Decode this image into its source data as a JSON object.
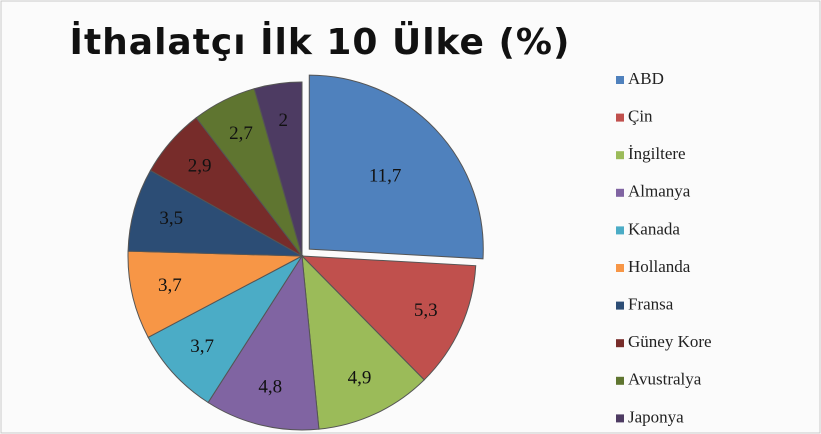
{
  "chart_data": {
    "type": "pie",
    "title": "İthalatçı İlk 10 Ülke (%)",
    "categories": [
      "ABD",
      "Çin",
      "İngiltere",
      "Almanya",
      "Kanada",
      "Hollanda",
      "Fransa",
      "Güney Kore",
      "Avustralya",
      "Japonya"
    ],
    "values": [
      11.7,
      5.3,
      4.9,
      4.8,
      3.7,
      3.7,
      3.5,
      2.9,
      2.7,
      2
    ],
    "value_labels": [
      "11,7",
      "5,3",
      "4,9",
      "4,8",
      "3,7",
      "3,7",
      "3,5",
      "2,9",
      "2,7",
      "2"
    ],
    "colors": [
      "#4f81bd",
      "#c0504d",
      "#9bbb59",
      "#8064a2",
      "#4bacc6",
      "#f79646",
      "#2c4d75",
      "#772c2a",
      "#5f7530",
      "#4d3b62"
    ],
    "legend": "right"
  }
}
